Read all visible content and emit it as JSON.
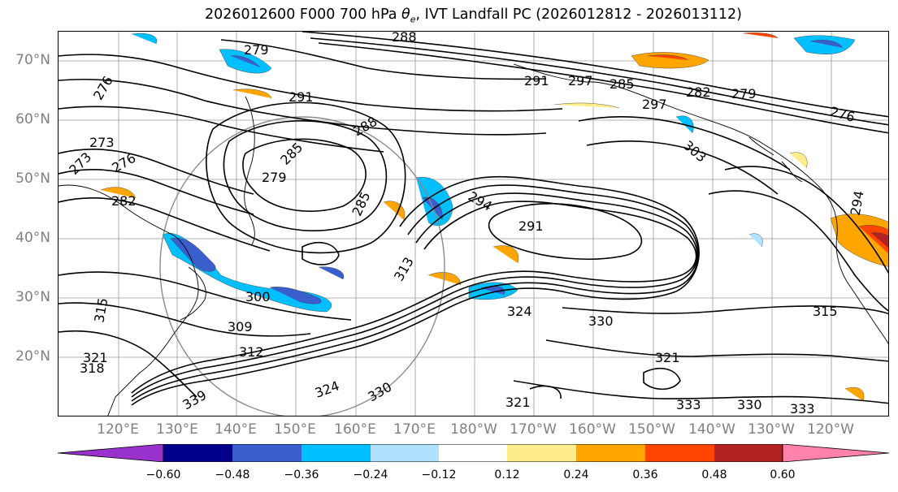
{
  "title": {
    "prefix": "2026012600 F000 700 hPa ",
    "theta_symbol": "θ",
    "theta_sub": "e",
    "suffix": ", IVT Landfall PC (2026012812 - 2026013112)"
  },
  "lat_labels": [
    "70°N",
    "60°N",
    "50°N",
    "40°N",
    "30°N",
    "20°N"
  ],
  "lon_labels": [
    "120°E",
    "130°E",
    "140°E",
    "150°E",
    "160°E",
    "170°E",
    "180°W",
    "170°W",
    "160°W",
    "150°W",
    "140°W",
    "130°W",
    "120°W"
  ],
  "contour_labels": [
    "288",
    "279",
    "291",
    "276",
    "273",
    "273",
    "276",
    "282",
    "279",
    "285",
    "285",
    "294",
    "291",
    "300",
    "309",
    "312",
    "315",
    "321",
    "318",
    "339",
    "324",
    "330",
    "324",
    "330",
    "321",
    "315",
    "321",
    "333",
    "330",
    "333",
    "291",
    "297",
    "285",
    "297",
    "282",
    "279",
    "276",
    "303",
    "294",
    "313",
    "288"
  ],
  "colorbar": {
    "colors": [
      "#9932cc",
      "#00008b",
      "#3a5fcd",
      "#00bfff",
      "#b0e2ff",
      "#ffffff",
      "#ffec8b",
      "#ffa500",
      "#ff4500",
      "#b22222",
      "#ff82ab"
    ],
    "ticks": [
      "−0.60",
      "−0.48",
      "−0.36",
      "−0.24",
      "−0.12",
      "0.12",
      "0.24",
      "0.36",
      "0.48",
      "0.60"
    ]
  },
  "shading_colors": {
    "dark_neg": "#3a5fcd",
    "mid_neg": "#00bfff",
    "light_neg": "#b0e2ff",
    "light_pos": "#ffec8b",
    "mid_pos": "#ffa500",
    "strong_pos": "#ff4500",
    "darkest_pos": "#b22222"
  }
}
